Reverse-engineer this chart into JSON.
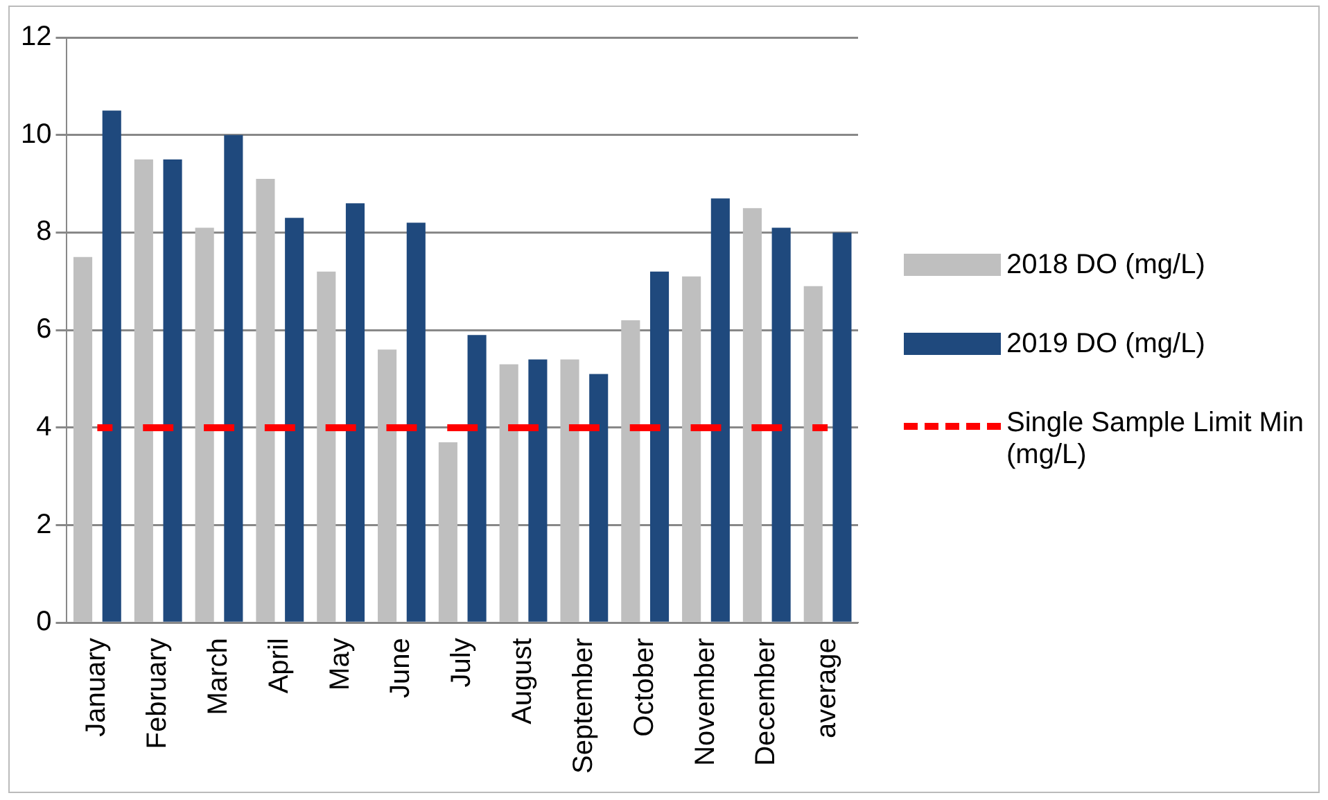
{
  "chart_data": {
    "type": "bar",
    "categories": [
      "January",
      "February",
      "March",
      "April",
      "May",
      "June",
      "July",
      "August",
      "September",
      "October",
      "November",
      "December",
      "average"
    ],
    "series": [
      {
        "name": "2018 DO (mg/L)",
        "color": "#bfbfbf",
        "values": [
          7.5,
          9.5,
          8.1,
          9.1,
          7.2,
          5.6,
          3.7,
          5.3,
          5.4,
          6.2,
          7.1,
          8.5,
          6.9
        ]
      },
      {
        "name": "2019 DO (mg/L)",
        "color": "#1f497d",
        "values": [
          10.5,
          9.5,
          10,
          8.3,
          8.6,
          8.2,
          5.9,
          5.4,
          5.1,
          7.2,
          8.7,
          8.1,
          8
        ]
      },
      {
        "name": "Single Sample Limit Min (mg/L)",
        "type": "line",
        "color": "#ff0000",
        "line_style": "dashed",
        "marker": "none",
        "values": [
          4,
          4,
          4,
          4,
          4,
          4,
          4,
          4,
          4,
          4,
          4,
          4,
          4
        ]
      }
    ],
    "ylim": [
      0,
      12
    ],
    "yticks": [
      0,
      2,
      4,
      6,
      8,
      10,
      12
    ],
    "grid": "y",
    "legend": "right"
  }
}
